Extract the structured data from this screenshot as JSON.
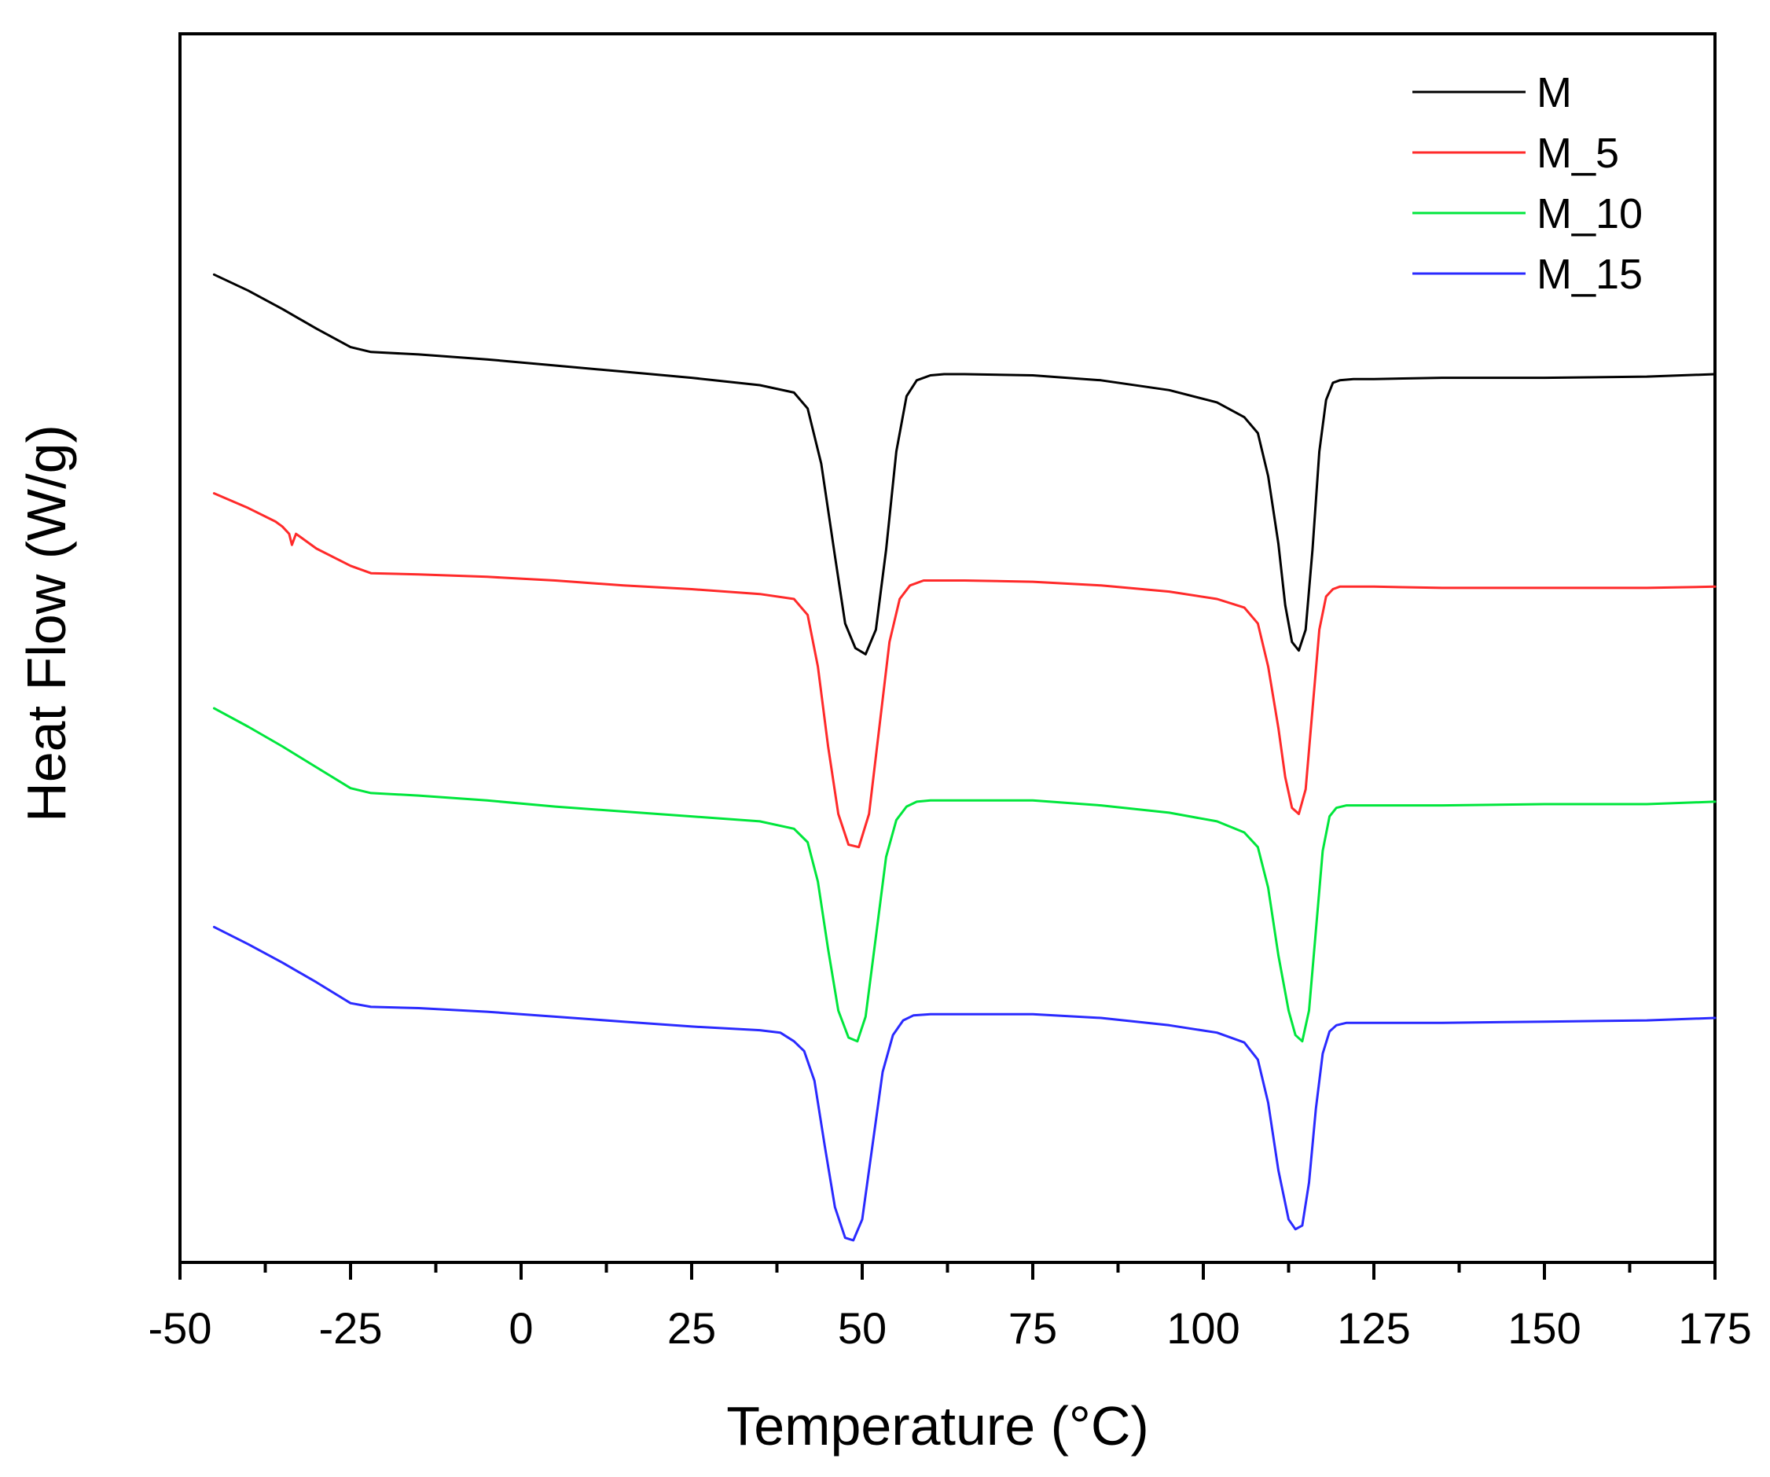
{
  "chart_data": {
    "type": "line",
    "title": "",
    "xlabel": "Temperature (°C)",
    "ylabel": "Heat Flow (W/g)",
    "xlim": [
      -50,
      175
    ],
    "ylim": [
      0,
      100
    ],
    "x_ticks": [
      -50,
      -25,
      0,
      25,
      50,
      75,
      100,
      125,
      150,
      175
    ],
    "x_tick_labels": [
      "-50",
      "-25",
      "0",
      "25",
      "50",
      "75",
      "100",
      "125",
      "150",
      "175"
    ],
    "y_ticks": [],
    "grid": false,
    "legend_position": "top-right",
    "series": [
      {
        "name": "M",
        "color": "#000000",
        "x": [
          -45,
          -40,
          -35,
          -30,
          -25,
          -22,
          -15,
          -5,
          5,
          15,
          25,
          35,
          40,
          42,
          44,
          46,
          47.5,
          49,
          50.5,
          52,
          53.5,
          55,
          56.5,
          58,
          60,
          62,
          65,
          75,
          85,
          95,
          102,
          106,
          108,
          109.5,
          111,
          112,
          113,
          114,
          115,
          116,
          117,
          118,
          119,
          120,
          122,
          125,
          135,
          150,
          165,
          175
        ],
        "y": [
          80.4,
          79.1,
          77.6,
          76.0,
          74.5,
          74.1,
          73.9,
          73.5,
          73.0,
          72.5,
          72.0,
          71.4,
          70.8,
          69.5,
          65.0,
          57.5,
          52.0,
          50.0,
          49.5,
          51.5,
          58.0,
          66.0,
          70.5,
          71.8,
          72.2,
          72.3,
          72.3,
          72.2,
          71.8,
          71.0,
          70.0,
          68.8,
          67.5,
          64.0,
          58.5,
          53.5,
          50.5,
          49.8,
          51.5,
          58.0,
          66.0,
          70.2,
          71.6,
          71.8,
          71.9,
          71.9,
          72.0,
          72.0,
          72.1,
          72.3
        ]
      },
      {
        "name": "M_5",
        "color": "#ff2a2a",
        "x": [
          -45,
          -40,
          -36,
          -35,
          -34,
          -33.6,
          -33,
          -30,
          -25,
          -22,
          -15,
          -5,
          5,
          15,
          25,
          35,
          40,
          42,
          43.5,
          45,
          46.5,
          48,
          49.5,
          51,
          52.5,
          54,
          55.5,
          57,
          59,
          65,
          75,
          85,
          95,
          102,
          106,
          108,
          109.5,
          111,
          112,
          113,
          114,
          115,
          116,
          117,
          118,
          119,
          120,
          122,
          125,
          135,
          150,
          165,
          175
        ],
        "y": [
          62.6,
          61.4,
          60.3,
          59.9,
          59.3,
          58.4,
          59.3,
          58.1,
          56.7,
          56.1,
          56.0,
          55.8,
          55.5,
          55.1,
          54.8,
          54.4,
          54.0,
          52.7,
          48.5,
          42.0,
          36.5,
          34.0,
          33.8,
          36.5,
          43.5,
          50.5,
          54.0,
          55.1,
          55.5,
          55.5,
          55.4,
          55.1,
          54.6,
          54.0,
          53.3,
          52.0,
          48.5,
          43.5,
          39.5,
          37.0,
          36.5,
          38.5,
          45.0,
          51.5,
          54.2,
          54.8,
          55.0,
          55.0,
          55.0,
          54.9,
          54.9,
          54.9,
          55.0
        ]
      },
      {
        "name": "M_10",
        "color": "#00e63c",
        "x": [
          -45,
          -40,
          -35,
          -30,
          -25,
          -22,
          -15,
          -5,
          5,
          15,
          25,
          35,
          40,
          42,
          43.5,
          45,
          46.5,
          48,
          49.3,
          50.5,
          52,
          53.5,
          55,
          56.5,
          58,
          60,
          65,
          75,
          85,
          95,
          102,
          106,
          108,
          109.5,
          111,
          112.5,
          113.5,
          114.5,
          115.5,
          116.5,
          117.5,
          118.5,
          119.5,
          121,
          125,
          135,
          150,
          165,
          175
        ],
        "y": [
          45.1,
          43.6,
          42.0,
          40.3,
          38.6,
          38.2,
          38.0,
          37.6,
          37.1,
          36.7,
          36.3,
          35.9,
          35.3,
          34.2,
          31.0,
          25.5,
          20.5,
          18.3,
          18.0,
          20.0,
          26.5,
          33.0,
          36.0,
          37.1,
          37.5,
          37.6,
          37.6,
          37.6,
          37.2,
          36.6,
          35.9,
          35.0,
          33.8,
          30.5,
          25.0,
          20.5,
          18.5,
          18.0,
          20.5,
          27.0,
          33.5,
          36.3,
          37.0,
          37.2,
          37.2,
          37.2,
          37.3,
          37.3,
          37.5
        ]
      },
      {
        "name": "M_15",
        "color": "#2a2aff",
        "x": [
          -45,
          -40,
          -35,
          -30,
          -25,
          -22,
          -15,
          -5,
          5,
          15,
          25,
          35,
          38,
          40,
          41.5,
          43,
          44.5,
          46,
          47.5,
          48.7,
          50,
          51.5,
          53,
          54.5,
          56,
          57.5,
          60,
          65,
          75,
          85,
          95,
          102,
          106,
          108,
          109.5,
          111,
          112.5,
          113.5,
          114.5,
          115.5,
          116.5,
          117.5,
          118.5,
          119.5,
          121,
          125,
          135,
          150,
          165,
          175
        ],
        "y": [
          27.3,
          25.9,
          24.4,
          22.8,
          21.1,
          20.8,
          20.7,
          20.4,
          20.0,
          19.6,
          19.2,
          18.9,
          18.7,
          18.0,
          17.2,
          14.8,
          9.5,
          4.5,
          2.0,
          1.8,
          3.5,
          9.5,
          15.5,
          18.5,
          19.7,
          20.1,
          20.2,
          20.2,
          20.2,
          19.9,
          19.3,
          18.7,
          17.9,
          16.5,
          13.0,
          7.5,
          3.5,
          2.7,
          3.0,
          6.5,
          12.5,
          17.0,
          18.8,
          19.3,
          19.5,
          19.5,
          19.5,
          19.6,
          19.7,
          19.9
        ]
      }
    ]
  }
}
